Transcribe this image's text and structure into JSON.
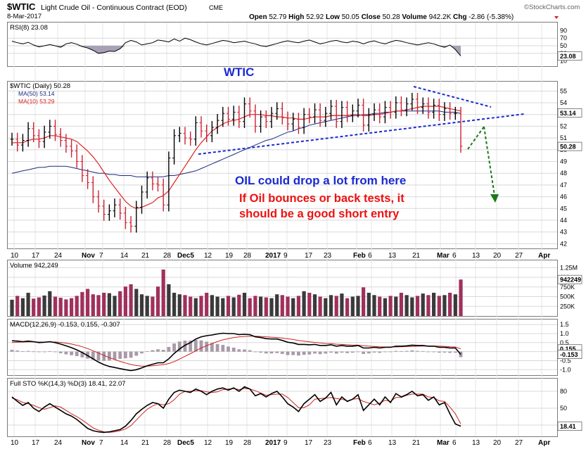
{
  "header": {
    "symbol": "$WTIC",
    "name": "Light Crude Oil - Continuous Contract (EOD)",
    "exchange": "CME",
    "date": "8-Mar-2017",
    "brand": "©StockCharts.com",
    "quote": {
      "open_label": "Open",
      "open": "52.79",
      "high_label": "High",
      "high": "52.92",
      "low_label": "Low",
      "low": "50.05",
      "close_label": "Close",
      "close": "50.28",
      "volume_label": "Volume",
      "volume": "942.2K",
      "chg_label": "Chg",
      "chg": "-2.86 (-5.38%)"
    }
  },
  "annotations": {
    "wtic": "WTIC",
    "oil_drop": "OIL could drop a lot from here",
    "bounce_line1": "If Oil bounces or back tests, it",
    "bounce_line2": "should be a good short entry"
  },
  "colors": {
    "up": "#000000",
    "down": "#cc2233",
    "ma50": "#1a2a80",
    "ma10": "#dd2222",
    "volume_up": "#3a3a3a",
    "volume_down": "#a0305c",
    "annotation_blue": "#1a2ad0",
    "annotation_red": "#ee1111",
    "arrow_green": "#1a7a1a",
    "trend_blue": "#1a2ad0",
    "macd_line": "#000000",
    "macd_signal": "#cc2222",
    "histogram": "#a89aa8"
  },
  "chart_data": [
    {
      "type": "line",
      "name": "rsi",
      "label": "RSI(8) 23.08",
      "last_label": "23.08",
      "yticks": [
        90,
        70,
        50,
        30,
        10
      ],
      "ylim": [
        0,
        100
      ],
      "reference_lines": [
        70,
        50,
        30
      ],
      "values": [
        62,
        58,
        55,
        59,
        52,
        47,
        50,
        53,
        50,
        46,
        55,
        58,
        54,
        48,
        44,
        38,
        30,
        32,
        36,
        35,
        42,
        58,
        64,
        60,
        52,
        55,
        58,
        65,
        63,
        60,
        68,
        62,
        70,
        66,
        60,
        55,
        52,
        56,
        60,
        64,
        62,
        58,
        60,
        62,
        58,
        55,
        50,
        48,
        52,
        56,
        60,
        63,
        60,
        58,
        62,
        65,
        60,
        55,
        58,
        62,
        64,
        60,
        58,
        62,
        60,
        55,
        60,
        63,
        58,
        55,
        60,
        64,
        62,
        58,
        55,
        52,
        55,
        58,
        55,
        50,
        46,
        52,
        40,
        23
      ]
    },
    {
      "type": "line",
      "name": "price",
      "label": "$WTIC (Daily) 50.28",
      "legend": [
        {
          "name": "MA(50) 53.14"
        },
        {
          "name": "MA(10) 53.29"
        }
      ],
      "last_labels": [
        "53.14",
        "50.28"
      ],
      "yticks": [
        55,
        54,
        53,
        52,
        51,
        50,
        49,
        48,
        47,
        46,
        45,
        44,
        43,
        42
      ],
      "ylim": [
        41.6,
        55.8
      ],
      "xticks": [
        "10",
        "17",
        "24",
        "Nov",
        "7",
        "14",
        "21",
        "28",
        "Dec5",
        "12",
        "19",
        "28",
        "2017",
        "9",
        "17",
        "23",
        "Feb",
        "6",
        "13",
        "21",
        "Mar",
        "6",
        "13",
        "20",
        "27",
        "Apr"
      ],
      "close": [
        50.9,
        50.4,
        50.8,
        51.8,
        51.2,
        50.7,
        51.5,
        52.0,
        51.3,
        50.8,
        50.3,
        49.9,
        49.0,
        47.8,
        47.2,
        46.0,
        45.2,
        44.5,
        44.8,
        45.3,
        44.6,
        43.8,
        43.5,
        45.1,
        46.4,
        47.6,
        47.1,
        47.0,
        45.3,
        49.3,
        51.2,
        51.4,
        51.0,
        50.9,
        52.3,
        51.6,
        51.2,
        51.9,
        52.5,
        53.1,
        52.6,
        53.2,
        52.4,
        53.9,
        53.3,
        52.0,
        52.8,
        52.4,
        53.1,
        53.5,
        52.7,
        52.2,
        52.6,
        51.9,
        53.0,
        52.8,
        53.4,
        52.5,
        53.1,
        53.7,
        52.4,
        53.6,
        52.9,
        53.3,
        53.8,
        52.1,
        53.0,
        53.4,
        52.8,
        53.6,
        53.2,
        54.0,
        53.4,
        53.9,
        54.3,
        53.6,
        53.9,
        53.2,
        53.8,
        53.0,
        53.5,
        53.1,
        53.1,
        50.3
      ],
      "ma10": [
        50.6,
        50.6,
        50.6,
        50.8,
        50.9,
        50.9,
        51.0,
        51.2,
        51.2,
        51.1,
        51.0,
        50.9,
        50.7,
        50.3,
        49.9,
        49.4,
        48.8,
        48.1,
        47.4,
        46.8,
        46.2,
        45.6,
        45.2,
        45.0,
        45.1,
        45.3,
        45.5,
        45.9,
        46.1,
        46.5,
        47.2,
        47.9,
        48.6,
        49.3,
        50.0,
        50.6,
        51.1,
        51.6,
        51.9,
        52.2,
        52.4,
        52.5,
        52.6,
        52.8,
        53.0,
        53.0,
        53.0,
        52.9,
        52.9,
        52.8,
        52.8,
        52.7,
        52.7,
        52.6,
        52.6,
        52.7,
        52.8,
        52.8,
        52.8,
        52.9,
        52.9,
        52.9,
        52.9,
        53.0,
        53.0,
        52.9,
        52.9,
        53.0,
        53.0,
        53.1,
        53.2,
        53.3,
        53.3,
        53.4,
        53.5,
        53.6,
        53.7,
        53.7,
        53.7,
        53.7,
        53.6,
        53.5,
        53.4,
        53.3
      ],
      "ma50": [
        48.0,
        48.1,
        48.2,
        48.3,
        48.4,
        48.5,
        48.5,
        48.6,
        48.6,
        48.6,
        48.6,
        48.5,
        48.4,
        48.3,
        48.2,
        48.1,
        48.0,
        48.0,
        47.9,
        47.9,
        47.8,
        47.8,
        47.8,
        47.7,
        47.7,
        47.7,
        47.7,
        47.7,
        47.7,
        47.8,
        47.8,
        47.9,
        48.0,
        48.1,
        48.2,
        48.4,
        48.6,
        48.8,
        49.0,
        49.2,
        49.4,
        49.6,
        49.8,
        50.0,
        50.2,
        50.4,
        50.6,
        50.8,
        50.9,
        51.1,
        51.3,
        51.5,
        51.6,
        51.8,
        51.9,
        52.1,
        52.2,
        52.3,
        52.4,
        52.5,
        52.6,
        52.7,
        52.8,
        52.9,
        52.9,
        53.0,
        53.0,
        53.1,
        53.1,
        53.2,
        53.2,
        53.3,
        53.3,
        53.3,
        53.3,
        53.3,
        53.3,
        53.3,
        53.3,
        53.3,
        53.2,
        53.2,
        53.2,
        53.1
      ]
    },
    {
      "type": "bar",
      "name": "volume",
      "label": "Volume 942,249",
      "last_label": "942249",
      "yticks": [
        "1.25M",
        "1M",
        "750K",
        "500K",
        "250K"
      ],
      "ylim": [
        0,
        1400000
      ],
      "values": [
        420,
        520,
        460,
        600,
        450,
        480,
        530,
        640,
        500,
        470,
        430,
        460,
        520,
        620,
        700,
        560,
        540,
        600,
        590,
        520,
        640,
        760,
        820,
        700,
        560,
        520,
        500,
        760,
        1200,
        820,
        600,
        560,
        540,
        500,
        460,
        520,
        600,
        540,
        500,
        460,
        520,
        480,
        550,
        600,
        460,
        520,
        500,
        480,
        460,
        560,
        540,
        500,
        460,
        520,
        640,
        600,
        560,
        500,
        460,
        540,
        520,
        580,
        460,
        500,
        520,
        740,
        600,
        540,
        500,
        460,
        520,
        500,
        600,
        540,
        480,
        520,
        580,
        540,
        600,
        520,
        540,
        600,
        560,
        942
      ]
    },
    {
      "type": "line",
      "name": "macd",
      "label": "MACD(12,26,9) -0.153, 0.155, -0.307",
      "last_labels": [
        "0.155",
        "-0.153"
      ],
      "yticks": [
        "1.5",
        "1.0",
        "0.5",
        "0.0",
        "-0.5",
        "-1.0"
      ],
      "ylim": [
        -1.3,
        1.7
      ],
      "macd": [
        0.6,
        0.58,
        0.55,
        0.58,
        0.55,
        0.5,
        0.52,
        0.55,
        0.5,
        0.42,
        0.32,
        0.22,
        0.1,
        -0.05,
        -0.22,
        -0.4,
        -0.58,
        -0.72,
        -0.82,
        -0.88,
        -0.94,
        -1.0,
        -1.05,
        -1.0,
        -0.9,
        -0.78,
        -0.7,
        -0.62,
        -0.62,
        -0.4,
        -0.1,
        0.15,
        0.35,
        0.5,
        0.7,
        0.82,
        0.88,
        0.92,
        0.98,
        1.02,
        1.0,
        1.0,
        0.94,
        0.96,
        0.94,
        0.82,
        0.78,
        0.72,
        0.7,
        0.7,
        0.62,
        0.52,
        0.48,
        0.4,
        0.4,
        0.38,
        0.4,
        0.34,
        0.34,
        0.38,
        0.3,
        0.34,
        0.3,
        0.3,
        0.34,
        0.2,
        0.2,
        0.24,
        0.2,
        0.24,
        0.24,
        0.3,
        0.3,
        0.32,
        0.36,
        0.34,
        0.34,
        0.3,
        0.3,
        0.24,
        0.24,
        0.2,
        0.2,
        -0.153
      ],
      "signal": [
        0.5,
        0.52,
        0.53,
        0.54,
        0.54,
        0.53,
        0.53,
        0.53,
        0.53,
        0.51,
        0.47,
        0.42,
        0.35,
        0.27,
        0.17,
        0.05,
        -0.08,
        -0.21,
        -0.33,
        -0.44,
        -0.54,
        -0.63,
        -0.71,
        -0.77,
        -0.8,
        -0.8,
        -0.78,
        -0.75,
        -0.72,
        -0.66,
        -0.55,
        -0.41,
        -0.26,
        -0.11,
        0.05,
        0.2,
        0.33,
        0.45,
        0.56,
        0.65,
        0.72,
        0.78,
        0.81,
        0.84,
        0.86,
        0.85,
        0.84,
        0.82,
        0.8,
        0.78,
        0.75,
        0.71,
        0.67,
        0.62,
        0.58,
        0.54,
        0.51,
        0.48,
        0.45,
        0.44,
        0.41,
        0.4,
        0.38,
        0.36,
        0.36,
        0.33,
        0.3,
        0.29,
        0.27,
        0.26,
        0.26,
        0.26,
        0.27,
        0.28,
        0.29,
        0.3,
        0.31,
        0.31,
        0.31,
        0.3,
        0.29,
        0.27,
        0.26,
        0.155
      ]
    },
    {
      "type": "line",
      "name": "full_sto",
      "label": "Full STO %K(14,3) %D(3) 18.41, 22.07",
      "last_label": "18.41",
      "yticks": [
        80,
        50,
        20
      ],
      "ylim": [
        0,
        100
      ],
      "reference_lines": [
        80,
        50,
        20
      ],
      "k": [
        70,
        62,
        55,
        60,
        50,
        44,
        52,
        58,
        52,
        46,
        40,
        36,
        30,
        22,
        14,
        10,
        8,
        7,
        8,
        10,
        12,
        18,
        28,
        40,
        48,
        55,
        60,
        58,
        50,
        66,
        78,
        82,
        80,
        78,
        84,
        80,
        74,
        80,
        84,
        86,
        82,
        86,
        80,
        88,
        84,
        72,
        76,
        70,
        76,
        80,
        70,
        58,
        52,
        44,
        58,
        66,
        74,
        62,
        68,
        78,
        56,
        70,
        62,
        66,
        74,
        46,
        56,
        66,
        56,
        70,
        60,
        76,
        70,
        74,
        80,
        72,
        74,
        64,
        70,
        56,
        60,
        40,
        22,
        18
      ],
      "d": [
        68,
        65,
        60,
        58,
        55,
        51,
        48,
        51,
        54,
        52,
        46,
        40,
        35,
        29,
        22,
        15,
        11,
        8,
        7,
        8,
        10,
        13,
        19,
        29,
        39,
        48,
        54,
        58,
        56,
        58,
        65,
        75,
        80,
        80,
        81,
        81,
        79,
        78,
        79,
        83,
        84,
        85,
        83,
        85,
        84,
        81,
        77,
        73,
        74,
        75,
        75,
        69,
        60,
        51,
        51,
        56,
        66,
        67,
        68,
        69,
        67,
        66,
        63,
        66,
        67,
        62,
        59,
        56,
        59,
        64,
        62,
        69,
        69,
        73,
        75,
        75,
        75,
        70,
        69,
        63,
        62,
        52,
        40,
        22
      ]
    }
  ]
}
